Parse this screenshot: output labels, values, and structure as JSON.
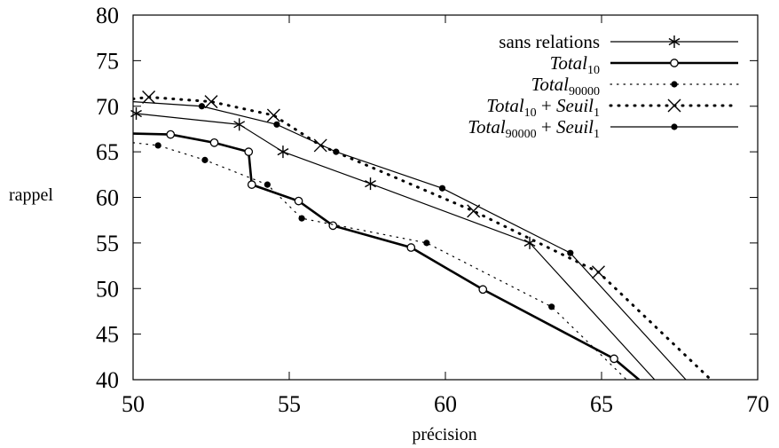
{
  "chart_data": {
    "type": "line",
    "xlabel": "précision",
    "ylabel": "rappel",
    "xlim": [
      50,
      70
    ],
    "ylim": [
      40,
      80
    ],
    "xticks": [
      50,
      55,
      60,
      65,
      70
    ],
    "yticks": [
      40,
      45,
      50,
      55,
      60,
      65,
      70,
      75,
      80
    ],
    "legend_position": "top-right",
    "grid": false,
    "series": [
      {
        "name": "sans relations",
        "name_parts": [
          {
            "t": "sans relations"
          }
        ],
        "line": "thin",
        "marker": "star",
        "color": "#000000",
        "x": [
          50.1,
          53.4,
          54.8,
          57.6,
          62.7,
          66.7
        ],
        "y": [
          69.2,
          68.0,
          65.0,
          61.5,
          55.0,
          40.0
        ]
      },
      {
        "name": "Total10",
        "name_parts": [
          {
            "t": "Total",
            "i": true
          },
          {
            "t": "10",
            "sub": true
          }
        ],
        "line": "thick",
        "marker": "open-circle",
        "color": "#000000",
        "x": [
          50.0,
          51.2,
          52.6,
          53.7,
          53.8,
          55.3,
          56.4,
          58.9,
          61.2,
          65.4,
          66.2
        ],
        "y": [
          67.0,
          66.9,
          66.0,
          65.0,
          61.4,
          59.6,
          56.9,
          54.5,
          49.9,
          42.3,
          40.0
        ]
      },
      {
        "name": "Total90000",
        "name_parts": [
          {
            "t": "Total",
            "i": true
          },
          {
            "t": "90000",
            "sub": true
          }
        ],
        "line": "dotted",
        "marker": "dot",
        "color": "#000000",
        "x": [
          50.0,
          50.8,
          52.3,
          54.3,
          55.4,
          59.4,
          63.4,
          65.8
        ],
        "y": [
          66.0,
          65.7,
          64.1,
          61.4,
          57.7,
          55.0,
          48.0,
          40.0
        ]
      },
      {
        "name": "Total10 + Seuil1",
        "name_parts": [
          {
            "t": "Total",
            "i": true
          },
          {
            "t": "10",
            "sub": true
          },
          {
            "t": " + "
          },
          {
            "t": "Seuil",
            "i": true
          },
          {
            "t": "1",
            "sub": true
          }
        ],
        "line": "thick-dotted",
        "marker": "cross",
        "color": "#000000",
        "x": [
          50.0,
          50.5,
          52.5,
          54.5,
          56.0,
          60.9,
          64.9,
          68.5
        ],
        "y": [
          70.8,
          71.0,
          70.5,
          69.0,
          65.7,
          58.5,
          51.8,
          40.0
        ]
      },
      {
        "name": "Total90000 + Seuil1",
        "name_parts": [
          {
            "t": "Total",
            "i": true
          },
          {
            "t": "90000",
            "sub": true
          },
          {
            "t": " + "
          },
          {
            "t": "Seuil",
            "i": true
          },
          {
            "t": "1",
            "sub": true
          }
        ],
        "line": "thin",
        "marker": "dot",
        "color": "#000000",
        "x": [
          50.0,
          52.2,
          54.6,
          56.5,
          59.9,
          64.0,
          67.7
        ],
        "y": [
          70.5,
          70.0,
          68.0,
          65.0,
          61.0,
          53.9,
          40.0
        ]
      }
    ]
  }
}
